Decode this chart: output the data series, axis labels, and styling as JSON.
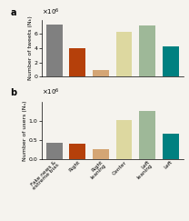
{
  "categories": [
    "Fake news &\nextreme bias",
    "Right",
    "Right\nleaning",
    "Center",
    "Left\nleaning",
    "Left"
  ],
  "tweets_values": [
    7.3,
    4.0,
    1.0,
    6.3,
    7.2,
    4.3
  ],
  "users_values": [
    0.44,
    0.41,
    0.27,
    1.03,
    1.27,
    0.67
  ],
  "bar_colors": [
    "#808080",
    "#b5400a",
    "#d4a574",
    "#ddd8a0",
    "#9eb898",
    "#008080"
  ],
  "ylabel_a": "Number of tweets (Nₖ)",
  "ylabel_b": "Number of users (Nᵤ)",
  "panel_a_label": "a",
  "panel_b_label": "b",
  "background_color": "#f5f3ee",
  "tweets_ylim": [
    0,
    8
  ],
  "tweets_yticks": [
    0,
    2,
    4,
    6
  ],
  "users_ylim": [
    0.0,
    1.5
  ],
  "users_yticks": [
    0.0,
    0.5,
    1.0
  ]
}
